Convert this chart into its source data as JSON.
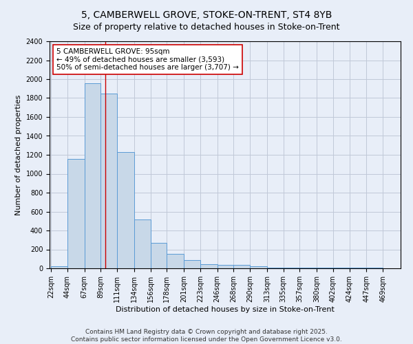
{
  "title_line1": "5, CAMBERWELL GROVE, STOKE-ON-TRENT, ST4 8YB",
  "title_line2": "Size of property relative to detached houses in Stoke-on-Trent",
  "xlabel": "Distribution of detached houses by size in Stoke-on-Trent",
  "ylabel": "Number of detached properties",
  "bar_edges": [
    22,
    44,
    67,
    89,
    111,
    134,
    156,
    178,
    201,
    223,
    246,
    268,
    290,
    313,
    335,
    357,
    380,
    402,
    424,
    447,
    469
  ],
  "bar_heights": [
    25,
    1160,
    1960,
    1850,
    1230,
    520,
    270,
    150,
    90,
    45,
    40,
    35,
    20,
    10,
    5,
    5,
    5,
    5,
    5,
    5
  ],
  "bar_color": "#c8d8e8",
  "bar_edge_color": "#5b9bd5",
  "grid_color": "#c0c8d8",
  "background_color": "#e8eef8",
  "red_line_x": 95,
  "red_line_color": "#cc0000",
  "annotation_text": "5 CAMBERWELL GROVE: 95sqm\n← 49% of detached houses are smaller (3,593)\n50% of semi-detached houses are larger (3,707) →",
  "annotation_box_color": "#ffffff",
  "annotation_box_edge_color": "#cc0000",
  "ylim": [
    0,
    2400
  ],
  "yticks": [
    0,
    200,
    400,
    600,
    800,
    1000,
    1200,
    1400,
    1600,
    1800,
    2000,
    2200,
    2400
  ],
  "footer_line1": "Contains HM Land Registry data © Crown copyright and database right 2025.",
  "footer_line2": "Contains public sector information licensed under the Open Government Licence v3.0.",
  "title_fontsize": 10,
  "subtitle_fontsize": 9,
  "axis_label_fontsize": 8,
  "tick_fontsize": 7,
  "annotation_fontsize": 7.5,
  "footer_fontsize": 6.5
}
